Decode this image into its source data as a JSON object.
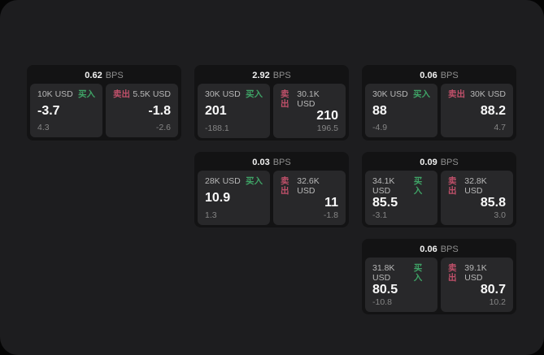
{
  "labels": {
    "bps_unit": "BPS",
    "buy": "买入",
    "sell": "卖出"
  },
  "colors": {
    "panel_bg": "#1d1d1f",
    "card_bg": "#131314",
    "tile_bg": "#28282a",
    "buy_green": "#3fa366",
    "sell_red": "#c0506a"
  },
  "cards": [
    {
      "bps": "0.62",
      "buy": {
        "amount": "10K USD",
        "value": "-3.7",
        "sub": "4.3"
      },
      "sell": {
        "amount": "5.5K USD",
        "value": "-1.8",
        "sub": "-2.6"
      }
    },
    {
      "bps": "2.92",
      "buy": {
        "amount": "30K USD",
        "value": "201",
        "sub": "-188.1"
      },
      "sell": {
        "amount": "30.1K USD",
        "value": "210",
        "sub": "196.5"
      }
    },
    {
      "bps": "0.06",
      "buy": {
        "amount": "30K USD",
        "value": "88",
        "sub": "-4.9"
      },
      "sell": {
        "amount": "30K USD",
        "value": "88.2",
        "sub": "4.7"
      }
    },
    {
      "bps": "0.03",
      "buy": {
        "amount": "28K USD",
        "value": "10.9",
        "sub": "1.3"
      },
      "sell": {
        "amount": "32.6K USD",
        "value": "11",
        "sub": "-1.8"
      }
    },
    {
      "bps": "0.09",
      "buy": {
        "amount": "34.1K USD",
        "value": "85.5",
        "sub": "-3.1"
      },
      "sell": {
        "amount": "32.8K USD",
        "value": "85.8",
        "sub": "3.0"
      }
    },
    {
      "bps": "0.06",
      "buy": {
        "amount": "31.8K USD",
        "value": "80.5",
        "sub": "-10.8"
      },
      "sell": {
        "amount": "39.1K USD",
        "value": "80.7",
        "sub": "10.2"
      }
    }
  ]
}
